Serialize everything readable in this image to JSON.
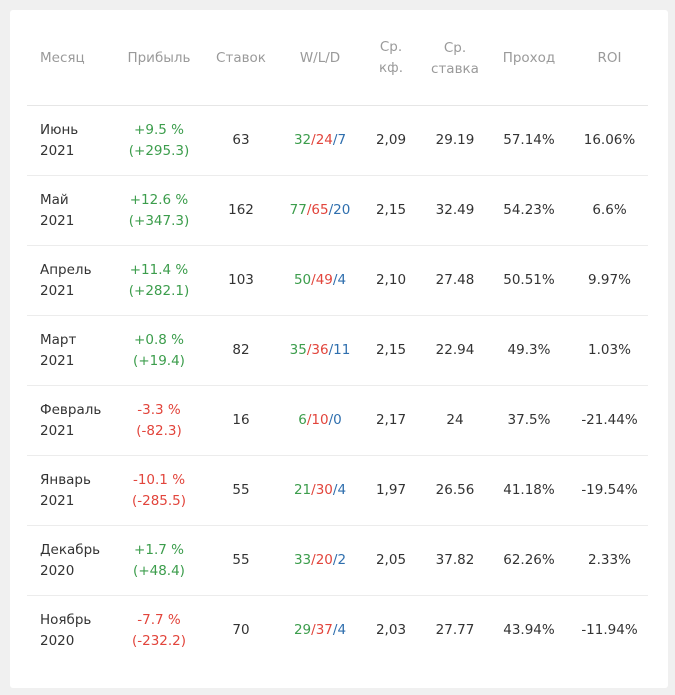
{
  "table": {
    "header": [
      "Месяц",
      "Прибыль",
      "Ставок",
      "W/L/D",
      "Ср. кф.",
      "Ср. ставка",
      "Проход",
      "ROI"
    ],
    "wld_separator": "/",
    "rows": [
      {
        "month": "Июнь",
        "year": "2021",
        "profit_pct": "+9.5 %",
        "profit_abs": "(+295.3)",
        "bets": "63",
        "w": "32",
        "l": "24",
        "d": "7",
        "avg_odds": "2,09",
        "avg_stake": "29.19",
        "pass": "57.14%",
        "roi": "16.06%"
      },
      {
        "month": "Май",
        "year": "2021",
        "profit_pct": "+12.6 %",
        "profit_abs": "(+347.3)",
        "bets": "162",
        "w": "77",
        "l": "65",
        "d": "20",
        "avg_odds": "2,15",
        "avg_stake": "32.49",
        "pass": "54.23%",
        "roi": "6.6%"
      },
      {
        "month": "Апрель",
        "year": "2021",
        "profit_pct": "+11.4 %",
        "profit_abs": "(+282.1)",
        "bets": "103",
        "w": "50",
        "l": "49",
        "d": "4",
        "avg_odds": "2,10",
        "avg_stake": "27.48",
        "pass": "50.51%",
        "roi": "9.97%"
      },
      {
        "month": "Март",
        "year": "2021",
        "profit_pct": "+0.8 %",
        "profit_abs": "(+19.4)",
        "bets": "82",
        "w": "35",
        "l": "36",
        "d": "11",
        "avg_odds": "2,15",
        "avg_stake": "22.94",
        "pass": "49.3%",
        "roi": "1.03%"
      },
      {
        "month": "Февраль",
        "year": "2021",
        "profit_pct": "-3.3 %",
        "profit_abs": "(-82.3)",
        "bets": "16",
        "w": "6",
        "l": "10",
        "d": "0",
        "avg_odds": "2,17",
        "avg_stake": "24",
        "pass": "37.5%",
        "roi": "-21.44%"
      },
      {
        "month": "Январь",
        "year": "2021",
        "profit_pct": "-10.1 %",
        "profit_abs": "(-285.5)",
        "bets": "55",
        "w": "21",
        "l": "30",
        "d": "4",
        "avg_odds": "1,97",
        "avg_stake": "26.56",
        "pass": "41.18%",
        "roi": "-19.54%"
      },
      {
        "month": "Декабрь",
        "year": "2020",
        "profit_pct": "+1.7 %",
        "profit_abs": "(+48.4)",
        "bets": "55",
        "w": "33",
        "l": "20",
        "d": "2",
        "avg_odds": "2,05",
        "avg_stake": "37.82",
        "pass": "62.26%",
        "roi": "2.33%"
      },
      {
        "month": "Ноябрь",
        "year": "2020",
        "profit_pct": "-7.7 %",
        "profit_abs": "(-232.2)",
        "bets": "70",
        "w": "29",
        "l": "37",
        "d": "4",
        "avg_odds": "2,03",
        "avg_stake": "27.77",
        "pass": "43.94%",
        "roi": "-11.94%"
      }
    ]
  }
}
